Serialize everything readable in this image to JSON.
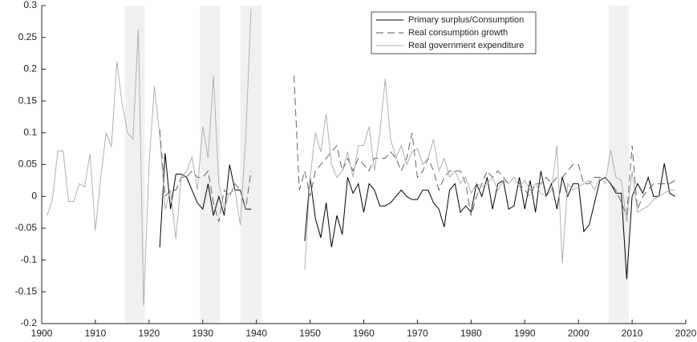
{
  "chart_data": {
    "type": "line",
    "x": [
      1901,
      1902,
      1903,
      1904,
      1905,
      1906,
      1907,
      1908,
      1909,
      1910,
      1911,
      1912,
      1913,
      1914,
      1915,
      1916,
      1917,
      1918,
      1919,
      1920,
      1921,
      1922,
      1923,
      1924,
      1925,
      1926,
      1927,
      1928,
      1929,
      1930,
      1931,
      1932,
      1933,
      1934,
      1935,
      1936,
      1937,
      1938,
      1939,
      1940,
      1941,
      1942,
      1943,
      1944,
      1945,
      1946,
      1947,
      1948,
      1949,
      1950,
      1951,
      1952,
      1953,
      1954,
      1955,
      1956,
      1957,
      1958,
      1959,
      1960,
      1961,
      1962,
      1963,
      1964,
      1965,
      1966,
      1967,
      1968,
      1969,
      1970,
      1971,
      1972,
      1973,
      1974,
      1975,
      1976,
      1977,
      1978,
      1979,
      1980,
      1981,
      1982,
      1983,
      1984,
      1985,
      1986,
      1987,
      1988,
      1989,
      1990,
      1991,
      1992,
      1993,
      1994,
      1995,
      1996,
      1997,
      1998,
      1999,
      2000,
      2001,
      2002,
      2003,
      2004,
      2005,
      2006,
      2007,
      2008,
      2009,
      2010,
      2011,
      2012,
      2013,
      2014,
      2015,
      2016,
      2017,
      2018
    ],
    "series": [
      {
        "name": "Primary surplus/Consumption",
        "color": "#000000",
        "dash": "solid",
        "values": [
          null,
          null,
          null,
          null,
          null,
          null,
          null,
          null,
          null,
          null,
          null,
          null,
          null,
          null,
          null,
          null,
          null,
          null,
          null,
          null,
          null,
          -0.08,
          0.068,
          -0.02,
          0.035,
          0.035,
          0.03,
          0.01,
          -0.01,
          -0.02,
          0.02,
          -0.03,
          0.0,
          -0.03,
          0.05,
          0.01,
          0.01,
          -0.02,
          -0.02,
          null,
          null,
          null,
          null,
          null,
          null,
          null,
          null,
          null,
          -0.07,
          0.03,
          -0.035,
          -0.065,
          -0.01,
          -0.08,
          -0.03,
          -0.06,
          0.03,
          0.005,
          0.02,
          -0.025,
          0.02,
          0.01,
          -0.015,
          -0.015,
          -0.01,
          0.0,
          0.01,
          0.0,
          -0.005,
          -0.005,
          0.01,
          0.01,
          -0.01,
          -0.02,
          -0.048,
          0.01,
          0.02,
          -0.025,
          -0.015,
          -0.025,
          0.02,
          0.0,
          0.03,
          -0.02,
          0.02,
          0.025,
          -0.02,
          -0.015,
          0.03,
          -0.02,
          0.025,
          -0.025,
          0.04,
          0.0,
          0.02,
          -0.02,
          0.03,
          0.0,
          0.02,
          0.02,
          -0.055,
          -0.045,
          -0.01,
          0.025,
          0.03,
          0.02,
          0.005,
          0.005,
          -0.13,
          0.0,
          0.02,
          0.005,
          0.03,
          0.0,
          0.0,
          0.052,
          0.005,
          0.0
        ]
      },
      {
        "name": "Real consumption growth",
        "color": "#555555",
        "dash": "dashed",
        "values": [
          null,
          null,
          null,
          null,
          null,
          null,
          null,
          null,
          null,
          null,
          null,
          null,
          null,
          null,
          null,
          null,
          null,
          null,
          null,
          null,
          null,
          0.105,
          0.0,
          0.01,
          0.01,
          0.03,
          0.03,
          0.04,
          0.03,
          0.03,
          0.04,
          -0.01,
          -0.04,
          0.01,
          0.0,
          0.02,
          0.01,
          -0.02,
          0.04,
          null,
          null,
          null,
          null,
          null,
          null,
          null,
          0.19,
          0.01,
          0.04,
          0.0,
          0.04,
          0.05,
          0.06,
          0.07,
          0.08,
          0.04,
          0.06,
          0.04,
          0.06,
          0.05,
          0.04,
          0.06,
          0.06,
          0.06,
          0.07,
          0.06,
          0.04,
          0.06,
          0.1,
          0.03,
          0.04,
          0.06,
          0.04,
          0.01,
          0.03,
          0.04,
          0.04,
          0.04,
          0.02,
          -0.03,
          0.0,
          0.02,
          0.04,
          0.03,
          0.04,
          0.03,
          0.02,
          0.03,
          0.02,
          0.01,
          0.0,
          0.02,
          0.02,
          0.03,
          0.02,
          0.03,
          0.03,
          0.04,
          0.05,
          0.05,
          0.02,
          0.02,
          0.03,
          0.03,
          0.03,
          0.02,
          0.01,
          -0.01,
          -0.03,
          0.08,
          -0.02,
          0.0,
          0.01,
          0.02,
          0.02,
          0.02,
          0.02,
          0.025
        ]
      },
      {
        "name": "Real government expenditure",
        "color": "#b0b0b0",
        "dash": "solid",
        "values": [
          -0.03,
          -0.005,
          0.072,
          0.071,
          -0.008,
          -0.008,
          0.02,
          0.015,
          0.067,
          -0.054,
          0.03,
          0.1,
          0.078,
          0.212,
          0.145,
          0.1,
          0.09,
          0.263,
          -0.172,
          0.05,
          0.173,
          0.095,
          -0.02,
          0.01,
          -0.067,
          0.03,
          0.04,
          0.062,
          0.01,
          0.11,
          0.06,
          0.19,
          0.02,
          -0.02,
          0.005,
          0.01,
          -0.045,
          0.09,
          0.295,
          null,
          null,
          null,
          null,
          null,
          null,
          null,
          null,
          null,
          -0.115,
          0.03,
          0.1,
          0.07,
          0.13,
          0.05,
          0.03,
          0.04,
          0.07,
          0.03,
          0.08,
          0.08,
          0.11,
          0.04,
          0.1,
          0.185,
          0.09,
          0.06,
          0.08,
          0.05,
          0.07,
          0.075,
          0.05,
          0.06,
          0.09,
          0.04,
          0.06,
          0.03,
          0.04,
          0.02,
          0.03,
          0.005,
          0.02,
          0.015,
          0.02,
          0.03,
          0.01,
          0.025,
          0.02,
          0.03,
          0.015,
          0.025,
          0.01,
          0.02,
          0.005,
          0.0,
          0.01,
          0.08,
          -0.105,
          0.02,
          0.01,
          0.015,
          0.02,
          0.025,
          0.01,
          0.03,
          0.02,
          0.073,
          0.03,
          0.025,
          -0.04,
          0.04,
          -0.025,
          -0.02,
          -0.015,
          -0.005,
          0.0,
          0.005,
          0.01,
          0.01
        ]
      }
    ],
    "shaded_regions": [
      [
        1915.5,
        1919.2
      ],
      [
        1929.5,
        1933.2
      ],
      [
        1937,
        1941
      ],
      [
        2005.6,
        2009.4
      ]
    ],
    "shade_color": "#f0f0f0",
    "xlim": [
      1900,
      2020
    ],
    "ylim": [
      -0.2,
      0.3
    ],
    "xticks": [
      1900,
      1910,
      1920,
      1930,
      1940,
      1950,
      1960,
      1970,
      1980,
      1990,
      2000,
      2010,
      2020
    ],
    "yticks": [
      -0.2,
      -0.15,
      -0.1,
      -0.05,
      0,
      0.05,
      0.1,
      0.15,
      0.2,
      0.25,
      0.3
    ],
    "grid": false,
    "legend": "upper center"
  }
}
